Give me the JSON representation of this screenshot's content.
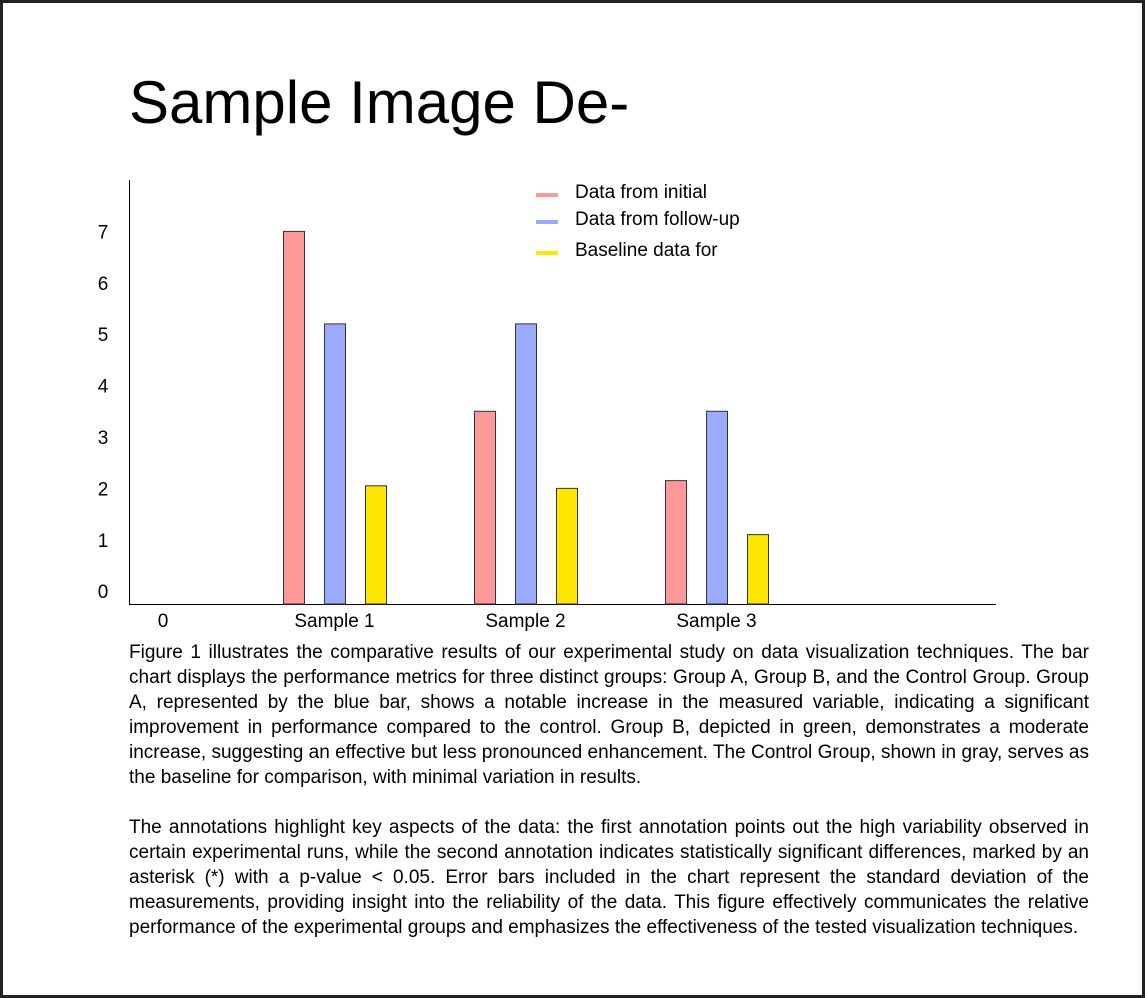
{
  "page": {
    "title": "Sample Image De-"
  },
  "chart_data": {
    "type": "bar",
    "title": "",
    "xlabel": "",
    "ylabel": "",
    "categories": [
      "Sample 1",
      "Sample 2",
      "Sample 3"
    ],
    "x_origin_label": "0",
    "yticks": [
      0,
      1,
      2,
      3,
      4,
      5,
      6,
      7
    ],
    "ylim": [
      -0.25,
      8
    ],
    "grid": false,
    "legend_position": "top-center",
    "series": [
      {
        "name": "Data from initial",
        "color": "#ff9999",
        "values": [
          7.0,
          3.5,
          2.15
        ]
      },
      {
        "name": "Data from follow-up",
        "color": "#99aaff",
        "values": [
          5.2,
          5.2,
          3.5
        ]
      },
      {
        "name": "Baseline data for",
        "color": "#ffe600",
        "values": [
          2.05,
          2.0,
          1.1
        ]
      }
    ]
  },
  "caption": {
    "paragraph_1": "Figure 1 illustrates the comparative results of our experimental study on data visualization techniques. The bar chart displays the performance metrics for three distinct groups: Group A, Group B, and the Control Group. Group A, represented by the blue bar, shows a notable increase in the measured variable, indicating a significant improvement in performance compared to the control. Group B, depicted in green, demonstrates a moderate increase, suggesting an effective but less pronounced enhancement. The Control Group, shown in gray, serves as the baseline for comparison, with minimal variation in results.",
    "paragraph_2": "The annotations highlight key aspects of the data: the first annotation points out the high variability observed in certain experimental runs, while the second annotation indicates statistically significant differences, marked by an asterisk (*) with a p-value < 0.05. Error bars included in the chart represent the standard deviation of the measurements, providing insight into the reliability of the data. This figure effectively communicates the relative performance of the experimental groups and emphasizes the effectiveness of the tested visualization techniques."
  }
}
